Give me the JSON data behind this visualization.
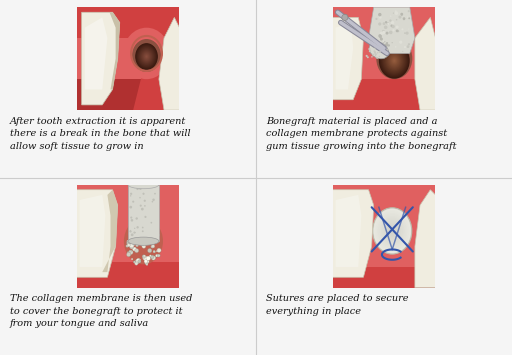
{
  "background_color": "#f5f5f5",
  "gum_color": "#d04040",
  "gum_light": "#e06060",
  "gum_dark": "#b03030",
  "tooth_color": "#f0ede0",
  "tooth_shadow": "#d8d0c0",
  "tooth_highlight": "#fafaf8",
  "socket_color": "#8b5040",
  "socket_dark": "#3a1a10",
  "graft_color": "#d0d0c8",
  "graft_light": "#e8e8e0",
  "membrane_color": "#d8d8d0",
  "suture_color": "#3355aa",
  "instrument_color": "#b0b0b8",
  "caption1": "After tooth extraction it is apparent\nthere is a break in the bone that will\nallow soft tissue to grow in",
  "caption2": "Bonegraft material is placed and a\ncollagen membrane protects against\ngum tissue growing into the bonegraft",
  "caption3": "The collagen membrane is then used\nto cover the bonegraft to protect it\nfrom your tongue and saliva",
  "caption4": "Sutures are placed to secure\neverything in place",
  "caption_fontsize": 7.0,
  "caption_color": "#111111",
  "fig_width": 5.12,
  "fig_height": 3.55,
  "panel_border_color": "#cccccc",
  "white_bg": "#ffffff"
}
